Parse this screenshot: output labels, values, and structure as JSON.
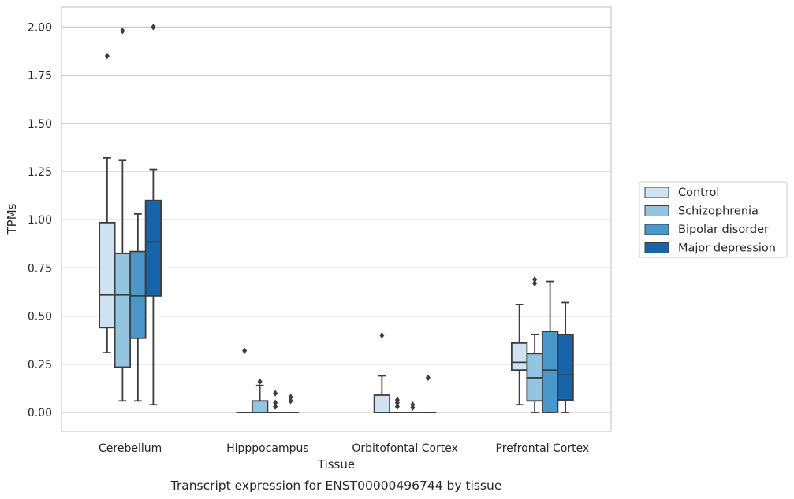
{
  "chart_data": {
    "type": "box",
    "xlabel": "Tissue",
    "ylabel": "TPMs",
    "caption": "Transcript expression for ENST00000496744 by tissue",
    "ylim": [
      -0.1,
      2.1
    ],
    "yticks": [
      "0.00",
      "0.25",
      "0.50",
      "0.75",
      "1.00",
      "1.25",
      "1.50",
      "1.75",
      "2.00"
    ],
    "grid": "horizontal",
    "legend_position": "right",
    "categories": [
      "Cerebellum",
      "Hipppocampus",
      "Orbitofontal Cortex",
      "Prefrontal Cortex"
    ],
    "series": [
      {
        "name": "Control",
        "color": "#d0e1f2",
        "boxes": [
          {
            "whislo": 0.31,
            "q1": 0.44,
            "med": 0.61,
            "q3": 0.985,
            "whishi": 1.32,
            "fliers": [
              1.85
            ]
          },
          {
            "whislo": 0.0,
            "q1": 0.0,
            "med": 0.0,
            "q3": 0.0,
            "whishi": 0.0,
            "fliers": [
              0.32
            ]
          },
          {
            "whislo": 0.0,
            "q1": 0.0,
            "med": 0.0,
            "q3": 0.09,
            "whishi": 0.19,
            "fliers": [
              0.4
            ]
          },
          {
            "whislo": 0.04,
            "q1": 0.22,
            "med": 0.26,
            "q3": 0.36,
            "whishi": 0.56,
            "fliers": []
          }
        ]
      },
      {
        "name": "Schizophrenia",
        "color": "#94c4df",
        "boxes": [
          {
            "whislo": 0.06,
            "q1": 0.235,
            "med": 0.61,
            "q3": 0.825,
            "whishi": 1.31,
            "fliers": [
              1.98
            ]
          },
          {
            "whislo": 0.0,
            "q1": 0.0,
            "med": 0.0,
            "q3": 0.06,
            "whishi": 0.14,
            "fliers": [
              0.16
            ]
          },
          {
            "whislo": 0.0,
            "q1": 0.0,
            "med": 0.0,
            "q3": 0.0,
            "whishi": 0.0,
            "fliers": [
              0.03,
              0.05,
              0.065
            ]
          },
          {
            "whislo": 0.0,
            "q1": 0.06,
            "med": 0.18,
            "q3": 0.305,
            "whishi": 0.405,
            "fliers": [
              0.67,
              0.69
            ]
          }
        ]
      },
      {
        "name": "Bipolar disorder",
        "color": "#4a98c9",
        "boxes": [
          {
            "whislo": 0.06,
            "q1": 0.385,
            "med": 0.605,
            "q3": 0.835,
            "whishi": 1.03,
            "fliers": []
          },
          {
            "whislo": 0.0,
            "q1": 0.0,
            "med": 0.0,
            "q3": 0.0,
            "whishi": 0.0,
            "fliers": [
              0.03,
              0.05,
              0.1
            ]
          },
          {
            "whislo": 0.0,
            "q1": 0.0,
            "med": 0.0,
            "q3": 0.0,
            "whishi": 0.0,
            "fliers": [
              0.025,
              0.04
            ]
          },
          {
            "whislo": 0.0,
            "q1": 0.0,
            "med": 0.22,
            "q3": 0.42,
            "whishi": 0.68,
            "fliers": []
          }
        ]
      },
      {
        "name": "Major depression",
        "color": "#1764ab",
        "boxes": [
          {
            "whislo": 0.04,
            "q1": 0.605,
            "med": 0.885,
            "q3": 1.1,
            "whishi": 1.26,
            "fliers": [
              2.0
            ]
          },
          {
            "whislo": 0.0,
            "q1": 0.0,
            "med": 0.0,
            "q3": 0.0,
            "whishi": 0.0,
            "fliers": [
              0.06,
              0.08
            ]
          },
          {
            "whislo": 0.0,
            "q1": 0.0,
            "med": 0.0,
            "q3": 0.0,
            "whishi": 0.0,
            "fliers": [
              0.18
            ]
          },
          {
            "whislo": 0.0,
            "q1": 0.065,
            "med": 0.195,
            "q3": 0.405,
            "whishi": 0.57,
            "fliers": []
          }
        ]
      }
    ]
  }
}
